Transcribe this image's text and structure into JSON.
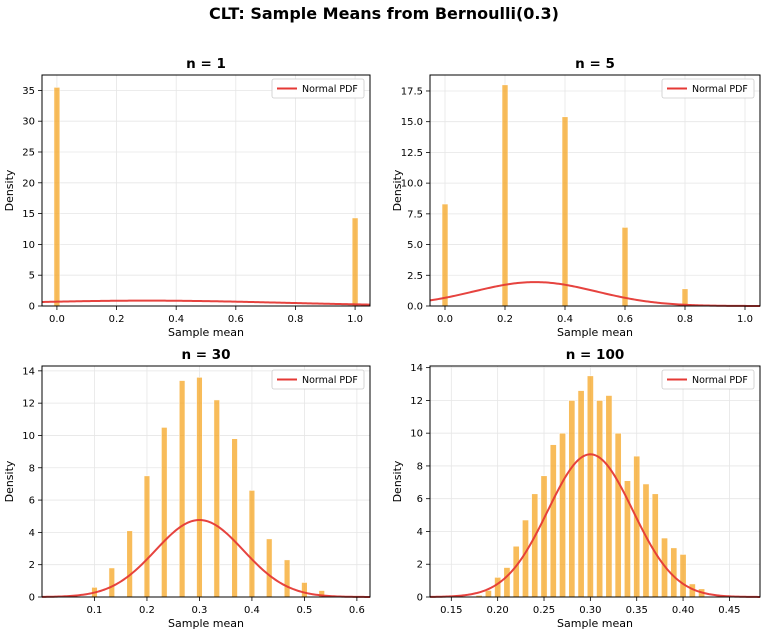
{
  "figure": {
    "suptitle": "CLT: Sample Means from Bernoulli(0.3)",
    "bar_color": "#f5a623",
    "line_color": "#e53935"
  },
  "chart_data": [
    {
      "type": "bar",
      "title": "n = 1",
      "xlabel": "Sample mean",
      "ylabel": "Density",
      "xlim": [
        -0.05,
        1.05
      ],
      "ylim": [
        0,
        37.5
      ],
      "xticks": [
        0.0,
        0.2,
        0.4,
        0.6,
        0.8,
        1.0
      ],
      "xtick_labels": [
        "0.0",
        "0.2",
        "0.4",
        "0.6",
        "0.8",
        "1.0"
      ],
      "yticks": [
        0,
        5,
        10,
        15,
        20,
        25,
        30,
        35
      ],
      "ytick_labels": [
        "0",
        "5",
        "10",
        "15",
        "20",
        "25",
        "30",
        "35"
      ],
      "bar_width": 0.02,
      "bars": [
        [
          0.0,
          35.5
        ],
        [
          1.0,
          14.3
        ]
      ],
      "legend": "Normal PDF",
      "legend_position": "top-right",
      "grid": true,
      "normal_pdf": {
        "mean": 0.3,
        "sd": 0.458
      }
    },
    {
      "type": "bar",
      "title": "n = 5",
      "xlabel": "Sample mean",
      "ylabel": "Density",
      "xlim": [
        -0.05,
        1.05
      ],
      "ylim": [
        0,
        18.8
      ],
      "xticks": [
        0.0,
        0.2,
        0.4,
        0.6,
        0.8,
        1.0
      ],
      "xtick_labels": [
        "0.0",
        "0.2",
        "0.4",
        "0.6",
        "0.8",
        "1.0"
      ],
      "yticks": [
        0.0,
        2.5,
        5.0,
        7.5,
        10.0,
        12.5,
        15.0,
        17.5
      ],
      "ytick_labels": [
        "0.0",
        "2.5",
        "5.0",
        "7.5",
        "10.0",
        "12.5",
        "15.0",
        "17.5"
      ],
      "bar_width": 0.02,
      "bars": [
        [
          0.0,
          8.3
        ],
        [
          0.2,
          18.0
        ],
        [
          0.4,
          15.4
        ],
        [
          0.6,
          6.4
        ],
        [
          0.8,
          1.4
        ]
      ],
      "legend": "Normal PDF",
      "legend_position": "top-right",
      "grid": true,
      "normal_pdf": {
        "mean": 0.3,
        "sd": 0.205
      }
    },
    {
      "type": "bar",
      "title": "n = 30",
      "xlabel": "Sample mean",
      "ylabel": "Density",
      "xlim": [
        0.0,
        0.625
      ],
      "ylim": [
        0,
        14.3
      ],
      "xticks": [
        0.1,
        0.2,
        0.3,
        0.4,
        0.5,
        0.6
      ],
      "xtick_labels": [
        "0.1",
        "0.2",
        "0.3",
        "0.4",
        "0.5",
        "0.6"
      ],
      "yticks": [
        0,
        2,
        4,
        6,
        8,
        10,
        12,
        14
      ],
      "ytick_labels": [
        "0",
        "2",
        "4",
        "6",
        "8",
        "10",
        "12",
        "14"
      ],
      "bar_width": 0.011,
      "bars": [
        [
          0.1,
          0.6
        ],
        [
          0.133,
          1.8
        ],
        [
          0.167,
          4.1
        ],
        [
          0.2,
          7.5
        ],
        [
          0.233,
          10.5
        ],
        [
          0.267,
          13.4
        ],
        [
          0.3,
          13.6
        ],
        [
          0.333,
          12.2
        ],
        [
          0.367,
          9.8
        ],
        [
          0.4,
          6.6
        ],
        [
          0.433,
          3.6
        ],
        [
          0.467,
          2.3
        ],
        [
          0.5,
          0.9
        ],
        [
          0.533,
          0.4
        ]
      ],
      "legend": "Normal PDF",
      "legend_position": "top-right",
      "grid": true,
      "normal_pdf": {
        "mean": 0.3,
        "sd": 0.0837
      }
    },
    {
      "type": "bar",
      "title": "n = 100",
      "xlabel": "Sample mean",
      "ylabel": "Density",
      "xlim": [
        0.127,
        0.483
      ],
      "ylim": [
        0,
        14.1
      ],
      "xticks": [
        0.15,
        0.2,
        0.25,
        0.3,
        0.35,
        0.4,
        0.45
      ],
      "xtick_labels": [
        "0.15",
        "0.20",
        "0.25",
        "0.30",
        "0.35",
        "0.40",
        "0.45"
      ],
      "yticks": [
        0,
        2,
        4,
        6,
        8,
        10,
        12,
        14
      ],
      "ytick_labels": [
        "0",
        "2",
        "4",
        "6",
        "8",
        "10",
        "12",
        "14"
      ],
      "bar_width": 0.0068,
      "bars": [
        [
          0.18,
          0.1
        ],
        [
          0.19,
          0.4
        ],
        [
          0.2,
          1.2
        ],
        [
          0.21,
          1.8
        ],
        [
          0.22,
          3.1
        ],
        [
          0.23,
          4.7
        ],
        [
          0.24,
          6.3
        ],
        [
          0.25,
          7.4
        ],
        [
          0.26,
          9.3
        ],
        [
          0.27,
          10.0
        ],
        [
          0.28,
          12.0
        ],
        [
          0.29,
          12.6
        ],
        [
          0.3,
          13.5
        ],
        [
          0.31,
          12.0
        ],
        [
          0.32,
          12.3
        ],
        [
          0.33,
          10.0
        ],
        [
          0.34,
          7.1
        ],
        [
          0.35,
          8.6
        ],
        [
          0.36,
          6.9
        ],
        [
          0.37,
          6.3
        ],
        [
          0.38,
          3.6
        ],
        [
          0.39,
          3.0
        ],
        [
          0.4,
          2.6
        ],
        [
          0.41,
          0.8
        ],
        [
          0.42,
          0.5
        ]
      ],
      "legend": "Normal PDF",
      "legend_position": "top-right",
      "grid": true,
      "normal_pdf": {
        "mean": 0.3,
        "sd": 0.0458
      }
    }
  ]
}
